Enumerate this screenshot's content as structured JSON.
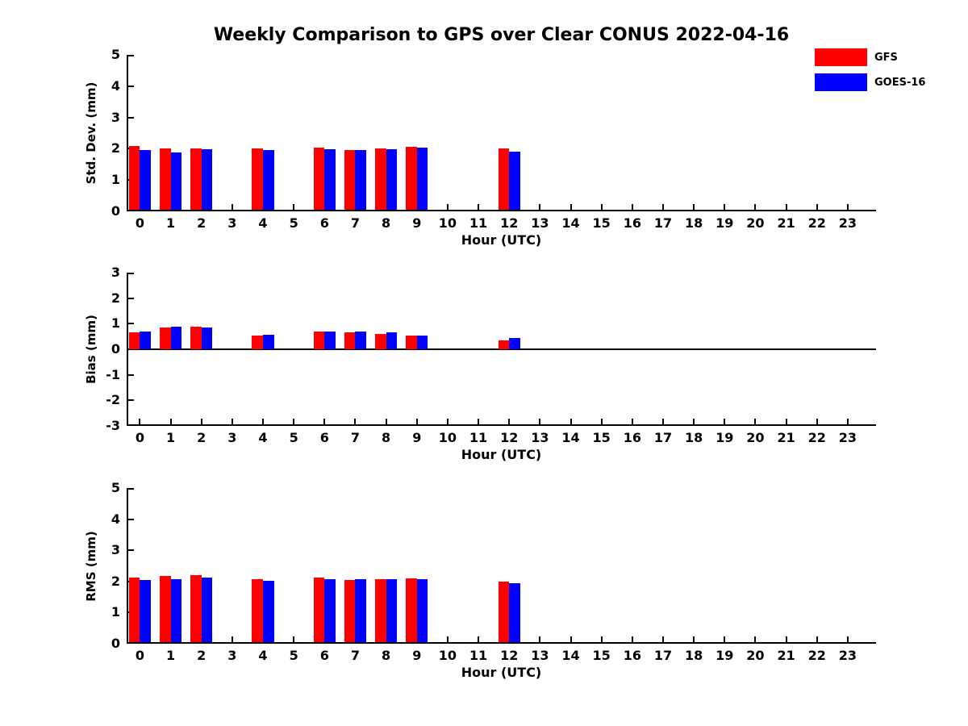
{
  "header": {
    "title": "Weekly Comparison to GPS over Clear CONUS 2022-04-16"
  },
  "legend": {
    "position": "top-right",
    "entries": [
      {
        "label": "GFS",
        "color": "#ff0000"
      },
      {
        "label": "GOES-16",
        "color": "#0000ff"
      }
    ]
  },
  "colors": {
    "gfs": "#ff0000",
    "goes16": "#0000ff",
    "axis": "#000000",
    "background": "#ffffff"
  },
  "chart_data": [
    {
      "type": "bar",
      "panel": "std-dev",
      "ylabel": "Std. Dev. (mm)",
      "xlabel": "Hour (UTC)",
      "categories": [
        0,
        1,
        2,
        3,
        4,
        5,
        6,
        7,
        8,
        9,
        10,
        11,
        12,
        13,
        14,
        15,
        16,
        17,
        18,
        19,
        20,
        21,
        22,
        23
      ],
      "series": [
        {
          "name": "GFS",
          "color": "#ff0000",
          "values": [
            2.08,
            2.02,
            2.02,
            null,
            2.02,
            null,
            2.04,
            1.97,
            2.0,
            2.07,
            null,
            null,
            2.0,
            null,
            null,
            null,
            null,
            null,
            null,
            null,
            null,
            null,
            null,
            null
          ]
        },
        {
          "name": "GOES-16",
          "color": "#0000ff",
          "values": [
            1.95,
            1.89,
            1.99,
            null,
            1.95,
            null,
            1.98,
            1.96,
            1.98,
            2.03,
            null,
            null,
            1.92,
            null,
            null,
            null,
            null,
            null,
            null,
            null,
            null,
            null,
            null,
            null
          ]
        }
      ],
      "ylim": [
        0,
        5
      ],
      "yticks": [
        0,
        1,
        2,
        3,
        4,
        5
      ],
      "xlim": [
        -0.43,
        23.92
      ],
      "zero_line": false,
      "grid": false,
      "bar_width_units": 0.355
    },
    {
      "type": "bar",
      "panel": "bias",
      "ylabel": "Bias (mm)",
      "xlabel": "Hour (UTC)",
      "categories": [
        0,
        1,
        2,
        3,
        4,
        5,
        6,
        7,
        8,
        9,
        10,
        11,
        12,
        13,
        14,
        15,
        16,
        17,
        18,
        19,
        20,
        21,
        22,
        23
      ],
      "series": [
        {
          "name": "GFS",
          "color": "#ff0000",
          "values": [
            0.66,
            0.86,
            0.89,
            null,
            0.55,
            null,
            0.68,
            0.66,
            0.6,
            0.53,
            null,
            null,
            0.35,
            null,
            null,
            null,
            null,
            null,
            null,
            null,
            null,
            null,
            null,
            null
          ]
        },
        {
          "name": "GOES-16",
          "color": "#0000ff",
          "values": [
            0.71,
            0.89,
            0.85,
            null,
            0.58,
            null,
            0.71,
            0.71,
            0.66,
            0.54,
            null,
            null,
            0.43,
            null,
            null,
            null,
            null,
            null,
            null,
            null,
            null,
            null,
            null,
            null
          ]
        }
      ],
      "ylim": [
        -3,
        3
      ],
      "yticks": [
        -3,
        -2,
        -1,
        0,
        1,
        2,
        3
      ],
      "xlim": [
        -0.43,
        23.92
      ],
      "zero_line": true,
      "grid": false,
      "bar_width_units": 0.355
    },
    {
      "type": "bar",
      "panel": "rms",
      "ylabel": "RMS (mm)",
      "xlabel": "Hour (UTC)",
      "categories": [
        0,
        1,
        2,
        3,
        4,
        5,
        6,
        7,
        8,
        9,
        10,
        11,
        12,
        13,
        14,
        15,
        16,
        17,
        18,
        19,
        20,
        21,
        22,
        23
      ],
      "series": [
        {
          "name": "GFS",
          "color": "#ff0000",
          "values": [
            2.13,
            2.18,
            2.2,
            null,
            2.07,
            null,
            2.13,
            2.04,
            2.06,
            2.1,
            null,
            null,
            2.0,
            null,
            null,
            null,
            null,
            null,
            null,
            null,
            null,
            null,
            null,
            null
          ]
        },
        {
          "name": "GOES-16",
          "color": "#0000ff",
          "values": [
            2.04,
            2.06,
            2.13,
            null,
            2.01,
            null,
            2.06,
            2.07,
            2.07,
            2.06,
            null,
            null,
            1.95,
            null,
            null,
            null,
            null,
            null,
            null,
            null,
            null,
            null,
            null,
            null
          ]
        }
      ],
      "ylim": [
        0,
        5
      ],
      "yticks": [
        0,
        1,
        2,
        3,
        4,
        5
      ],
      "xlim": [
        -0.43,
        23.92
      ],
      "zero_line": false,
      "grid": false,
      "bar_width_units": 0.355
    }
  ]
}
